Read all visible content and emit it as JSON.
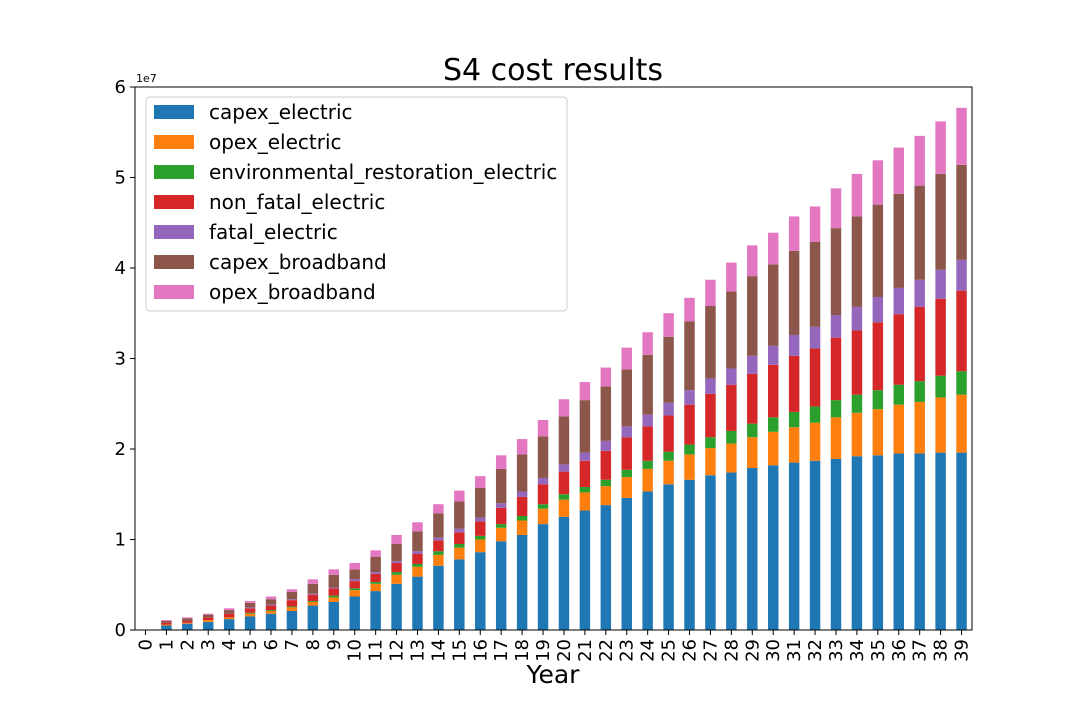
{
  "chart_data": {
    "type": "bar",
    "stacked": true,
    "title": "S4 cost results",
    "xlabel": "Year",
    "ylabel": "",
    "y_offset_label": "1e7",
    "y_scale": 10000000,
    "ylim": [
      0,
      60000000
    ],
    "yticks": [
      0,
      10000000,
      20000000,
      30000000,
      40000000,
      50000000,
      60000000
    ],
    "ytick_labels": [
      "0",
      "1",
      "2",
      "3",
      "4",
      "5",
      "6"
    ],
    "legend_position": "upper-left",
    "grid": false,
    "categories": [
      "0",
      "1",
      "2",
      "3",
      "4",
      "5",
      "6",
      "7",
      "8",
      "9",
      "10",
      "11",
      "12",
      "13",
      "14",
      "15",
      "16",
      "17",
      "18",
      "19",
      "20",
      "21",
      "22",
      "23",
      "24",
      "25",
      "26",
      "27",
      "28",
      "29",
      "30",
      "31",
      "32",
      "33",
      "34",
      "35",
      "36",
      "37",
      "38",
      "39"
    ],
    "series": [
      {
        "name": "capex_electric",
        "color": "#1f77b4",
        "values": [
          0,
          500000,
          700000,
          900000,
          1200000,
          1500000,
          1800000,
          2100000,
          2700000,
          3100000,
          3700000,
          4300000,
          5100000,
          5900000,
          7100000,
          7800000,
          8600000,
          9800000,
          10500000,
          11700000,
          12500000,
          13200000,
          13800000,
          14600000,
          15300000,
          16100000,
          16600000,
          17100000,
          17400000,
          17900000,
          18200000,
          18500000,
          18700000,
          18900000,
          19200000,
          19300000,
          19500000,
          19500000,
          19600000,
          19600000
        ]
      },
      {
        "name": "opex_electric",
        "color": "#ff7f0e",
        "values": [
          0,
          100000,
          100000,
          200000,
          200000,
          300000,
          300000,
          400000,
          400000,
          500000,
          700000,
          800000,
          1000000,
          1100000,
          1200000,
          1300000,
          1400000,
          1500000,
          1600000,
          1700000,
          1900000,
          2000000,
          2100000,
          2300000,
          2500000,
          2600000,
          2800000,
          3000000,
          3200000,
          3400000,
          3700000,
          3900000,
          4200000,
          4600000,
          4800000,
          5100000,
          5400000,
          5700000,
          6100000,
          6400000
        ]
      },
      {
        "name": "environmental_restoration_electric",
        "color": "#2ca02c",
        "values": [
          0,
          0,
          0,
          0,
          0,
          100000,
          100000,
          100000,
          100000,
          200000,
          200000,
          200000,
          300000,
          300000,
          400000,
          400000,
          400000,
          400000,
          500000,
          500000,
          600000,
          600000,
          700000,
          800000,
          900000,
          1000000,
          1100000,
          1200000,
          1400000,
          1500000,
          1600000,
          1700000,
          1800000,
          1900000,
          2000000,
          2100000,
          2200000,
          2300000,
          2400000,
          2600000
        ]
      },
      {
        "name": "non_fatal_electric",
        "color": "#d62728",
        "values": [
          0,
          200000,
          200000,
          300000,
          400000,
          500000,
          500000,
          700000,
          700000,
          800000,
          800000,
          900000,
          1000000,
          1100000,
          1200000,
          1300000,
          1600000,
          1800000,
          2100000,
          2200000,
          2500000,
          2900000,
          3200000,
          3600000,
          3800000,
          4000000,
          4400000,
          4800000,
          5100000,
          5500000,
          5800000,
          6200000,
          6400000,
          6900000,
          7100000,
          7500000,
          7800000,
          8200000,
          8500000,
          8900000
        ]
      },
      {
        "name": "fatal_electric",
        "color": "#9467bd",
        "values": [
          0,
          0,
          0,
          0,
          0,
          100000,
          100000,
          100000,
          100000,
          100000,
          200000,
          200000,
          200000,
          300000,
          300000,
          400000,
          400000,
          500000,
          600000,
          700000,
          800000,
          900000,
          1100000,
          1200000,
          1300000,
          1400000,
          1600000,
          1700000,
          1800000,
          2000000,
          2100000,
          2300000,
          2400000,
          2500000,
          2600000,
          2800000,
          2900000,
          3000000,
          3200000,
          3400000
        ]
      },
      {
        "name": "capex_broadband",
        "color": "#8c564b",
        "values": [
          0,
          200000,
          300000,
          300000,
          400000,
          500000,
          600000,
          800000,
          1100000,
          1400000,
          1100000,
          1700000,
          1900000,
          2200000,
          2700000,
          3000000,
          3300000,
          3800000,
          4100000,
          4600000,
          5300000,
          5800000,
          6000000,
          6300000,
          6600000,
          7300000,
          7600000,
          8000000,
          8500000,
          8800000,
          9000000,
          9300000,
          9400000,
          9600000,
          10000000,
          10200000,
          10400000,
          10400000,
          10600000,
          10500000
        ]
      },
      {
        "name": "opex_broadband",
        "color": "#e377c2",
        "values": [
          0,
          100000,
          100000,
          100000,
          200000,
          200000,
          300000,
          300000,
          500000,
          600000,
          700000,
          700000,
          1000000,
          1000000,
          1000000,
          1200000,
          1300000,
          1500000,
          1700000,
          1800000,
          1900000,
          2000000,
          2100000,
          2400000,
          2500000,
          2600000,
          2600000,
          2900000,
          3200000,
          3400000,
          3500000,
          3800000,
          3900000,
          4400000,
          4700000,
          4900000,
          5100000,
          5500000,
          5800000,
          6300000
        ]
      }
    ]
  }
}
